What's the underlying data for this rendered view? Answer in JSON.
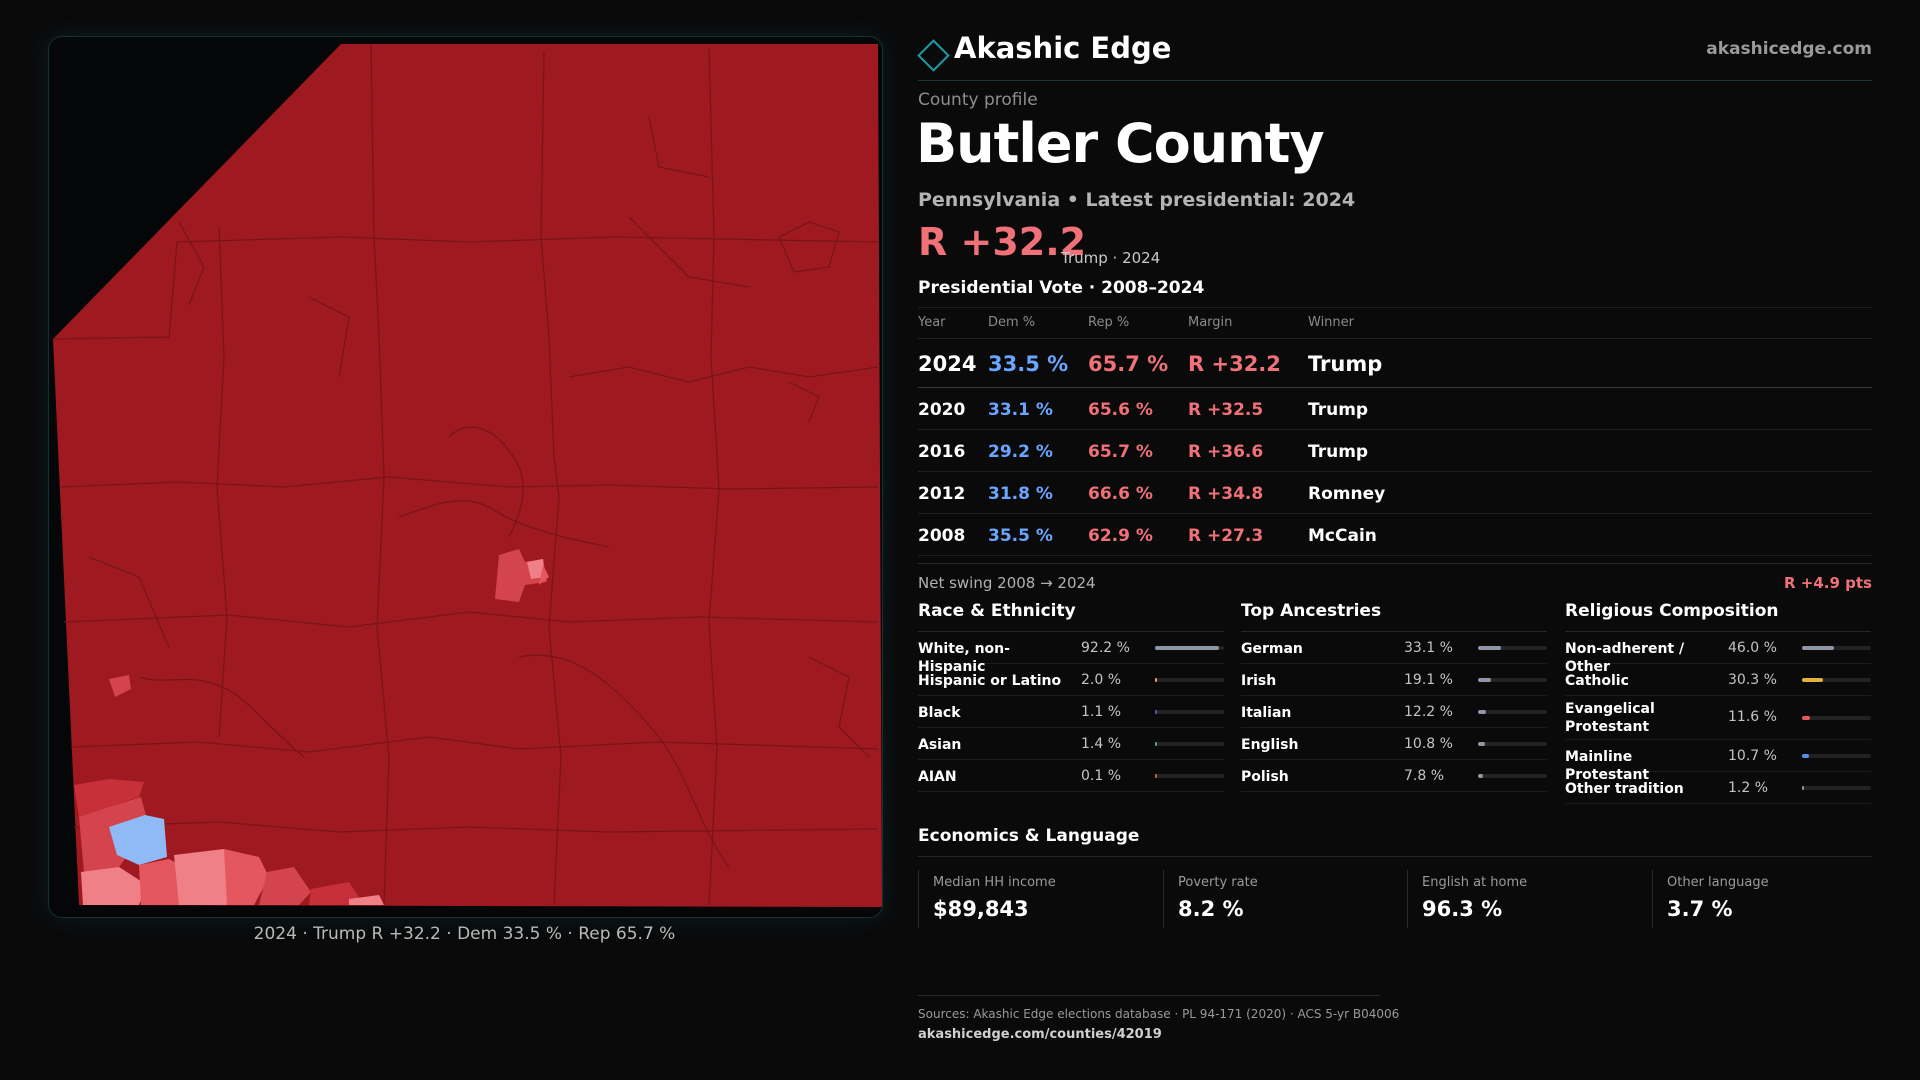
{
  "brand": {
    "name": "Akashic Edge",
    "url": "akashicedge.com"
  },
  "profile": {
    "eyebrow": "County profile",
    "title": "Butler County",
    "subtitle": "Pennsylvania • Latest presidential: 2024",
    "margin": "R +32.2",
    "margin_note": "Trump · 2024"
  },
  "map": {
    "caption": "2024 · Trump R +32.2 · Dem 33.5 % · Rep 65.7 %",
    "colors": {
      "base": "#9e1a20",
      "light_rep": "#e4575f",
      "lighter_rep": "#f08088",
      "dem": "#8fbaf5",
      "line": "#7a1418"
    }
  },
  "presidential": {
    "heading": "Presidential Vote · 2008–2024",
    "columns": [
      "Year",
      "Dem %",
      "Rep %",
      "Margin",
      "Winner"
    ],
    "rows": [
      {
        "year": "2024",
        "dem": "33.5 %",
        "rep": "65.7 %",
        "margin": "R +32.2",
        "winner": "Trump"
      },
      {
        "year": "2020",
        "dem": "33.1 %",
        "rep": "65.6 %",
        "margin": "R +32.5",
        "winner": "Trump"
      },
      {
        "year": "2016",
        "dem": "29.2 %",
        "rep": "65.7 %",
        "margin": "R +36.6",
        "winner": "Trump"
      },
      {
        "year": "2012",
        "dem": "31.8 %",
        "rep": "66.6 %",
        "margin": "R +34.8",
        "winner": "Romney"
      },
      {
        "year": "2008",
        "dem": "35.5 %",
        "rep": "62.9 %",
        "margin": "R +27.3",
        "winner": "McCain"
      }
    ],
    "swing_label": "Net swing 2008 → 2024",
    "swing_value": "R +4.9 pts"
  },
  "race": {
    "title": "Race & Ethnicity",
    "items": [
      {
        "label": "White, non-Hispanic",
        "value": "92.2 %",
        "fraction": 0.922,
        "color": "#8e97a3"
      },
      {
        "label": "Hispanic or Latino",
        "value": "2.0 %",
        "fraction": 0.02,
        "color": "#e3b23c"
      },
      {
        "label": "Black",
        "value": "1.1 %",
        "fraction": 0.011,
        "color": "#7a4fa0"
      },
      {
        "label": "Asian",
        "value": "1.4 %",
        "fraction": 0.014,
        "color": "#2fb38a"
      },
      {
        "label": "AIAN",
        "value": "0.1 %",
        "fraction": 0.001,
        "color": "#c7663a"
      }
    ]
  },
  "ancestry": {
    "title": "Top Ancestries",
    "items": [
      {
        "label": "German",
        "value": "33.1 %",
        "fraction": 0.331,
        "color": "#8e97a3"
      },
      {
        "label": "Irish",
        "value": "19.1 %",
        "fraction": 0.191,
        "color": "#8e97a3"
      },
      {
        "label": "Italian",
        "value": "12.2 %",
        "fraction": 0.122,
        "color": "#8e97a3"
      },
      {
        "label": "English",
        "value": "10.8 %",
        "fraction": 0.108,
        "color": "#8e97a3"
      },
      {
        "label": "Polish",
        "value": "7.8 %",
        "fraction": 0.078,
        "color": "#8e97a3"
      }
    ]
  },
  "religion": {
    "title": "Religious Composition",
    "items": [
      {
        "label": "Non-adherent / Other",
        "value": "46.0 %",
        "fraction": 0.46,
        "color": "#8e97a3"
      },
      {
        "label": "Catholic",
        "value": "30.3 %",
        "fraction": 0.303,
        "color": "#e3b23c"
      },
      {
        "label": "Evangelical Protestant",
        "value": "11.6 %",
        "fraction": 0.116,
        "color": "#e4575f"
      },
      {
        "label": "Mainline Protestant",
        "value": "10.7 %",
        "fraction": 0.107,
        "color": "#5b8fe6"
      },
      {
        "label": "Other tradition",
        "value": "1.2 %",
        "fraction": 0.012,
        "color": "#8e97a3"
      }
    ]
  },
  "economics": {
    "title": "Economics & Language",
    "cards": [
      {
        "label": "Median HH income",
        "value": "$89,843"
      },
      {
        "label": "Poverty rate",
        "value": "8.2 %"
      },
      {
        "label": "English at home",
        "value": "96.3 %"
      },
      {
        "label": "Other language",
        "value": "3.7 %"
      }
    ]
  },
  "footer": {
    "sources": "Sources: Akashic Edge elections database · PL 94-171 (2020) · ACS 5-yr B04006",
    "url": "akashicedge.com/counties/42019"
  }
}
